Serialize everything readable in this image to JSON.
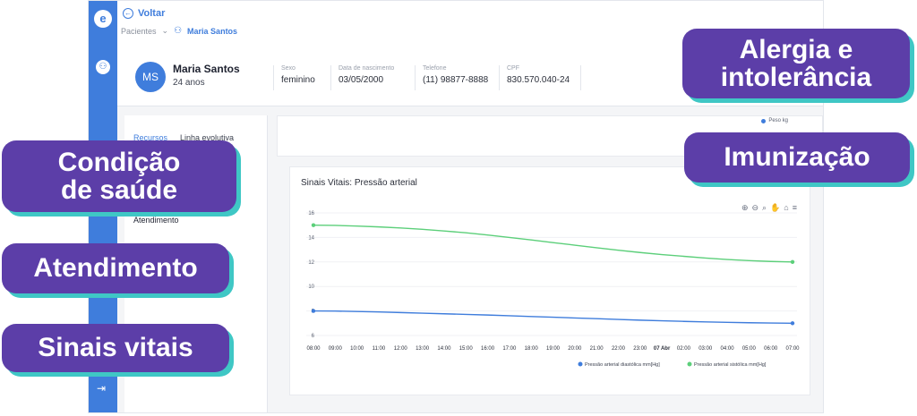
{
  "nav": {
    "back_label": "Voltar",
    "breadcrumb_parent": "Pacientes",
    "breadcrumb_current": "Maria Santos"
  },
  "patient": {
    "initials": "MS",
    "name": "Maria Santos",
    "age": "24 anos",
    "fields": [
      {
        "label": "Sexo",
        "value": "feminino"
      },
      {
        "label": "Data de nascimento",
        "value": "03/05/2000"
      },
      {
        "label": "Telefone",
        "value": "(11) 98877-8888"
      },
      {
        "label": "CPF",
        "value": "830.570.040-24"
      }
    ]
  },
  "sidebar": {
    "tabs": [
      "Recursos",
      "Linha evolutiva"
    ],
    "item": "Atendimento"
  },
  "top_strip": {
    "legend": "Peso kg"
  },
  "chart_card": {
    "title": "Sinais Vitais: Pressão arterial",
    "tool_icons": [
      "zoom-in-icon",
      "zoom-out-icon",
      "magnify-icon",
      "pan-icon",
      "home-icon",
      "menu-icon"
    ]
  },
  "callouts": {
    "alergia": [
      "Alergia e",
      "intolerância"
    ],
    "imunizacao": "Imunização",
    "condicao": [
      "Condição",
      "de saúde"
    ],
    "atendimento": "Atendimento",
    "sinais": "Sinais vitais"
  },
  "colors": {
    "brand": "#3f7ddc",
    "callout": "#5c3ea8",
    "callout_shadow": "#3fc7c5",
    "series_diastolic": "#3f7ddc",
    "series_systolic": "#5ccf7a"
  },
  "chart_data": {
    "type": "line",
    "title": "Sinais Vitais: Pressão arterial",
    "x": [
      "08:00",
      "09:00",
      "10:00",
      "11:00",
      "12:00",
      "13:00",
      "14:00",
      "15:00",
      "16:00",
      "17:00",
      "18:00",
      "19:00",
      "20:00",
      "21:00",
      "22:00",
      "23:00",
      "07 Abr",
      "02:00",
      "03:00",
      "04:00",
      "05:00",
      "06:00",
      "07:00"
    ],
    "x_bold": [
      "07 Abr"
    ],
    "yticks": [
      6,
      8,
      10,
      12,
      14,
      16
    ],
    "ylim": [
      6,
      16
    ],
    "series": [
      {
        "name": "Pressão arterial diastólica mm[Hg]",
        "points": [
          [
            0,
            8.0
          ],
          [
            22,
            7.0
          ]
        ],
        "values": [
          8.0,
          7.99,
          7.96,
          7.92,
          7.87,
          7.82,
          7.77,
          7.72,
          7.67,
          7.61,
          7.55,
          7.49,
          7.43,
          7.37,
          7.31,
          7.25,
          7.2,
          7.15,
          7.11,
          7.07,
          7.04,
          7.02,
          7.0
        ]
      },
      {
        "name": "Pressão arterial sistólica mm[Hg]",
        "points": [
          [
            0,
            15.0
          ],
          [
            22,
            12.0
          ]
        ],
        "values": [
          15.0,
          14.98,
          14.93,
          14.86,
          14.77,
          14.66,
          14.53,
          14.38,
          14.2,
          14.0,
          13.8,
          13.58,
          13.37,
          13.16,
          12.96,
          12.77,
          12.6,
          12.46,
          12.32,
          12.2,
          12.11,
          12.04,
          12.0
        ]
      }
    ]
  }
}
